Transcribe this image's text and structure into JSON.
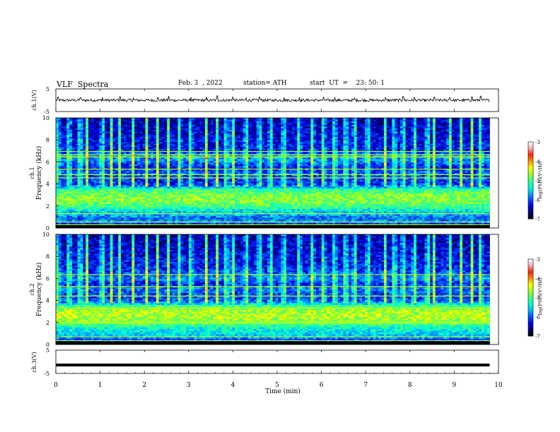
{
  "header": {
    "title": "VLF  Spectra",
    "date": "Feb. 3  , 2022",
    "station": "station= ATH",
    "start_ut": "start  UT  =    23: 50: 1"
  },
  "colors": {
    "spectrogram_scale": [
      "#000000",
      "#00007a",
      "#0000dc",
      "#0050ff",
      "#00b4ff",
      "#00ffd0",
      "#40ff80",
      "#a0ff20",
      "#ffff00",
      "#ff9000",
      "#ff2000",
      "#ffb0b0",
      "#ffffff"
    ]
  },
  "chart_data": [
    {
      "type": "line",
      "panel": "ch1-waveform",
      "ylabel": "ch.1(V)",
      "ylim": [
        -5,
        5
      ],
      "y_ticks": [
        "5",
        "-5"
      ],
      "x": {
        "start": 0,
        "end": 9.8,
        "unit": "min"
      },
      "baseline": 0.0,
      "noise_amplitude": 0.6,
      "spikes": [
        {
          "x": 0.05,
          "y": 1.4
        },
        {
          "x": 0.55,
          "y": 1.2
        },
        {
          "x": 1.05,
          "y": 1.3
        },
        {
          "x": 1.45,
          "y": 1.6
        },
        {
          "x": 1.75,
          "y": 1.1
        },
        {
          "x": 2.3,
          "y": 1.2
        },
        {
          "x": 2.55,
          "y": 1.9
        },
        {
          "x": 3.05,
          "y": 1.3
        },
        {
          "x": 3.4,
          "y": 1.5
        },
        {
          "x": 3.65,
          "y": 2.0
        },
        {
          "x": 4.0,
          "y": 1.3
        },
        {
          "x": 4.3,
          "y": 1.1
        },
        {
          "x": 4.6,
          "y": 1.4
        },
        {
          "x": 5.15,
          "y": 1.2
        },
        {
          "x": 5.5,
          "y": 1.3
        },
        {
          "x": 6.05,
          "y": 1.5
        },
        {
          "x": 6.3,
          "y": 1.2
        },
        {
          "x": 6.75,
          "y": 1.1
        },
        {
          "x": 7.45,
          "y": 1.3
        },
        {
          "x": 7.85,
          "y": 1.7
        },
        {
          "x": 8.1,
          "y": 1.2
        },
        {
          "x": 8.55,
          "y": 1.4
        },
        {
          "x": 8.9,
          "y": 1.1
        },
        {
          "x": 9.4,
          "y": 1.5
        },
        {
          "x": 9.6,
          "y": 1.8
        }
      ]
    },
    {
      "type": "heatmap",
      "panel": "ch1-spectrogram",
      "ylabel": "ch.1\nFrequency (kHz)",
      "ylim": [
        0,
        10
      ],
      "y_ticks": [
        "0",
        "2",
        "4",
        "6",
        "8",
        "10"
      ],
      "x": {
        "start": 0,
        "end": 9.8,
        "unit": "min"
      },
      "colorbar": {
        "label": "log(PSD)(V²/Hz)",
        "range": [
          -7,
          -3
        ],
        "ticks": [
          "-3",
          "-4",
          "-5",
          "-6",
          "-7"
        ]
      },
      "frequency_profile": [
        {
          "f": 0.0,
          "v": -6.9
        },
        {
          "f": 0.3,
          "v": -6.4
        },
        {
          "f": 0.6,
          "v": -5.6
        },
        {
          "f": 0.8,
          "v": -6.0
        },
        {
          "f": 1.0,
          "v": -5.8
        },
        {
          "f": 1.5,
          "v": -5.5
        },
        {
          "f": 2.0,
          "v": -5.0
        },
        {
          "f": 2.5,
          "v": -4.75
        },
        {
          "f": 3.0,
          "v": -4.8
        },
        {
          "f": 3.5,
          "v": -5.1
        },
        {
          "f": 3.9,
          "v": -6.1
        },
        {
          "f": 4.5,
          "v": -6.15
        },
        {
          "f": 5.0,
          "v": -6.0
        },
        {
          "f": 5.5,
          "v": -6.25
        },
        {
          "f": 6.0,
          "v": -5.9
        },
        {
          "f": 6.5,
          "v": -5.7
        },
        {
          "f": 7.0,
          "v": -6.25
        },
        {
          "f": 8.0,
          "v": -6.3
        },
        {
          "f": 9.0,
          "v": -6.4
        },
        {
          "f": 10.0,
          "v": -6.5
        }
      ],
      "narrowband_lines_khz": [
        0.3,
        0.55,
        1.3,
        4.55,
        4.85,
        5.35,
        6.45,
        6.65,
        6.95
      ],
      "burst_times_min": [
        0.05,
        0.3,
        0.55,
        0.7,
        1.05,
        1.25,
        1.45,
        1.75,
        2.05,
        2.3,
        2.55,
        2.8,
        3.05,
        3.4,
        3.65,
        3.85,
        4.0,
        4.3,
        4.6,
        4.85,
        5.15,
        5.5,
        5.8,
        6.05,
        6.3,
        6.55,
        6.75,
        7.05,
        7.45,
        7.65,
        7.85,
        8.1,
        8.4,
        8.55,
        8.9,
        9.15,
        9.4,
        9.6
      ]
    },
    {
      "type": "heatmap",
      "panel": "ch2-spectrogram",
      "ylabel": "ch.2\nFrequency (kHz)",
      "ylim": [
        0,
        10
      ],
      "y_ticks": [
        "0",
        "2",
        "4",
        "6",
        "8",
        "10"
      ],
      "x": {
        "start": 0,
        "end": 9.8,
        "unit": "min"
      },
      "colorbar": {
        "label": "log(PSD)(V²/Hz)",
        "range": [
          -7,
          -3
        ],
        "ticks": [
          "-3",
          "-4",
          "-5",
          "-6",
          "-7"
        ]
      },
      "frequency_profile": [
        {
          "f": 0.0,
          "v": -6.9
        },
        {
          "f": 0.3,
          "v": -6.3
        },
        {
          "f": 0.6,
          "v": -5.7
        },
        {
          "f": 1.0,
          "v": -5.5
        },
        {
          "f": 1.5,
          "v": -5.3
        },
        {
          "f": 2.0,
          "v": -4.8
        },
        {
          "f": 2.5,
          "v": -4.6
        },
        {
          "f": 3.0,
          "v": -4.6
        },
        {
          "f": 3.5,
          "v": -5.0
        },
        {
          "f": 3.9,
          "v": -6.0
        },
        {
          "f": 4.5,
          "v": -6.1
        },
        {
          "f": 5.0,
          "v": -5.9
        },
        {
          "f": 5.5,
          "v": -6.2
        },
        {
          "f": 6.0,
          "v": -5.8
        },
        {
          "f": 6.5,
          "v": -6.0
        },
        {
          "f": 7.0,
          "v": -6.2
        },
        {
          "f": 8.0,
          "v": -6.3
        },
        {
          "f": 9.0,
          "v": -6.4
        },
        {
          "f": 10.0,
          "v": -6.5
        }
      ],
      "narrowband_lines_khz": [
        0.35,
        0.7,
        1.95,
        2.05,
        3.3,
        4.4,
        5.25,
        6.35
      ],
      "burst_times_min": [
        0.05,
        0.3,
        0.55,
        0.7,
        1.05,
        1.25,
        1.45,
        1.75,
        2.05,
        2.3,
        2.55,
        2.8,
        3.05,
        3.4,
        3.65,
        3.85,
        4.0,
        4.3,
        4.6,
        4.85,
        5.15,
        5.5,
        5.8,
        6.05,
        6.3,
        6.55,
        6.75,
        7.05,
        7.45,
        7.65,
        7.85,
        8.1,
        8.4,
        8.55,
        8.9,
        9.15,
        9.4,
        9.6
      ]
    },
    {
      "type": "line",
      "panel": "ch3-waveform",
      "ylabel": "ch.3(V)",
      "ylim": [
        -5,
        5
      ],
      "y_ticks": [
        "5",
        "-5"
      ],
      "x": {
        "start": 0,
        "end": 9.8,
        "unit": "min"
      },
      "baseline": -1.4,
      "noise_amplitude": 0.0
    }
  ],
  "x_axis": {
    "label": "Time  (min)",
    "range": [
      0,
      10
    ],
    "ticks": [
      "0",
      "1",
      "2",
      "3",
      "4",
      "5",
      "6",
      "7",
      "8",
      "9",
      "10"
    ]
  }
}
